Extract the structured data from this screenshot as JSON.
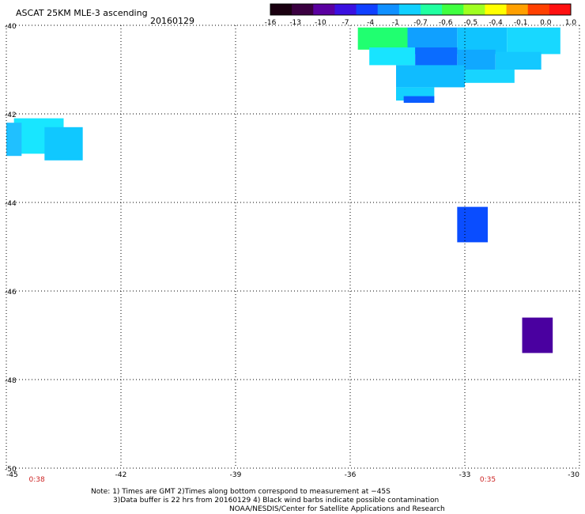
{
  "header": {
    "title": "ASCAT 25KM MLE-3 ascending",
    "date": "20160129"
  },
  "colorbar": {
    "ticks": [
      "-16",
      "-13",
      "-10",
      "-7",
      "-4",
      "-1",
      "-0.7",
      "-0.6",
      "-0.5",
      "-0.4",
      "-0.1",
      "0.0",
      "1.0"
    ],
    "colors": [
      "#1a0010",
      "#3a0040",
      "#5a00a0",
      "#3a10e0",
      "#1040ff",
      "#1090ff",
      "#10d0ff",
      "#20ffa0",
      "#40ff40",
      "#a0ff20",
      "#ffff00",
      "#ffa000",
      "#ff4000",
      "#ff1010"
    ]
  },
  "map": {
    "lat_labels": [
      "-40",
      "-42",
      "-44",
      "-46",
      "-48",
      "-50"
    ],
    "lon_labels": [
      "-45",
      "-42",
      "-39",
      "-36",
      "-33",
      "-30"
    ],
    "time_labels": [
      {
        "text": "0:38",
        "lon": -44.2
      },
      {
        "text": "0:35",
        "lon": -32.4
      }
    ],
    "lat_range": [
      -50,
      -40
    ],
    "lon_range": [
      -45,
      -30
    ],
    "cells": [
      {
        "lon": -44.8,
        "lat": -42.1,
        "w": 1.3,
        "h": 0.8,
        "color": "#18e6ff"
      },
      {
        "lon": -44.0,
        "lat": -42.3,
        "w": 1.0,
        "h": 0.75,
        "color": "#10c8ff"
      },
      {
        "lon": -45.0,
        "lat": -42.2,
        "w": 0.4,
        "h": 0.75,
        "color": "#20c0ff"
      },
      {
        "lon": -33.2,
        "lat": -44.1,
        "w": 0.8,
        "h": 0.8,
        "color": "#0a4dff"
      },
      {
        "lon": -31.5,
        "lat": -46.6,
        "w": 0.8,
        "h": 0.8,
        "color": "#4a00a0"
      },
      {
        "lon": -35.8,
        "lat": -40.05,
        "w": 1.3,
        "h": 0.5,
        "color": "#20ff70"
      },
      {
        "lon": -34.5,
        "lat": -40.05,
        "w": 1.3,
        "h": 0.6,
        "color": "#10a0ff"
      },
      {
        "lon": -33.2,
        "lat": -40.05,
        "w": 1.3,
        "h": 0.6,
        "color": "#10c4ff"
      },
      {
        "lon": -31.9,
        "lat": -40.05,
        "w": 1.4,
        "h": 0.6,
        "color": "#18d8ff"
      },
      {
        "lon": -35.5,
        "lat": -40.5,
        "w": 1.2,
        "h": 0.4,
        "color": "#18e4ff"
      },
      {
        "lon": -34.3,
        "lat": -40.5,
        "w": 1.1,
        "h": 0.5,
        "color": "#0a6cff"
      },
      {
        "lon": -33.2,
        "lat": -40.55,
        "w": 1.0,
        "h": 0.5,
        "color": "#10a8ff"
      },
      {
        "lon": -32.2,
        "lat": -40.6,
        "w": 1.2,
        "h": 0.4,
        "color": "#14c8ff"
      },
      {
        "lon": -34.8,
        "lat": -40.9,
        "w": 1.8,
        "h": 0.5,
        "color": "#10bcff"
      },
      {
        "lon": -33.0,
        "lat": -41.0,
        "w": 1.3,
        "h": 0.3,
        "color": "#18d4ff"
      },
      {
        "lon": -34.8,
        "lat": -41.4,
        "w": 1.0,
        "h": 0.3,
        "color": "#14d0ff"
      },
      {
        "lon": -34.6,
        "lat": -41.6,
        "w": 0.8,
        "h": 0.15,
        "color": "#0a5cff"
      }
    ]
  },
  "footer": {
    "line1": "Note: 1) Times are GMT 2)Times along bottom correspond to measurement at −45S",
    "line2": "3)Data buffer is 22 hrs from 20160129 4) Black wind barbs indicate possible contamination",
    "line3": "NOAA/NESDIS/Center for Satellite Applications and Research"
  }
}
